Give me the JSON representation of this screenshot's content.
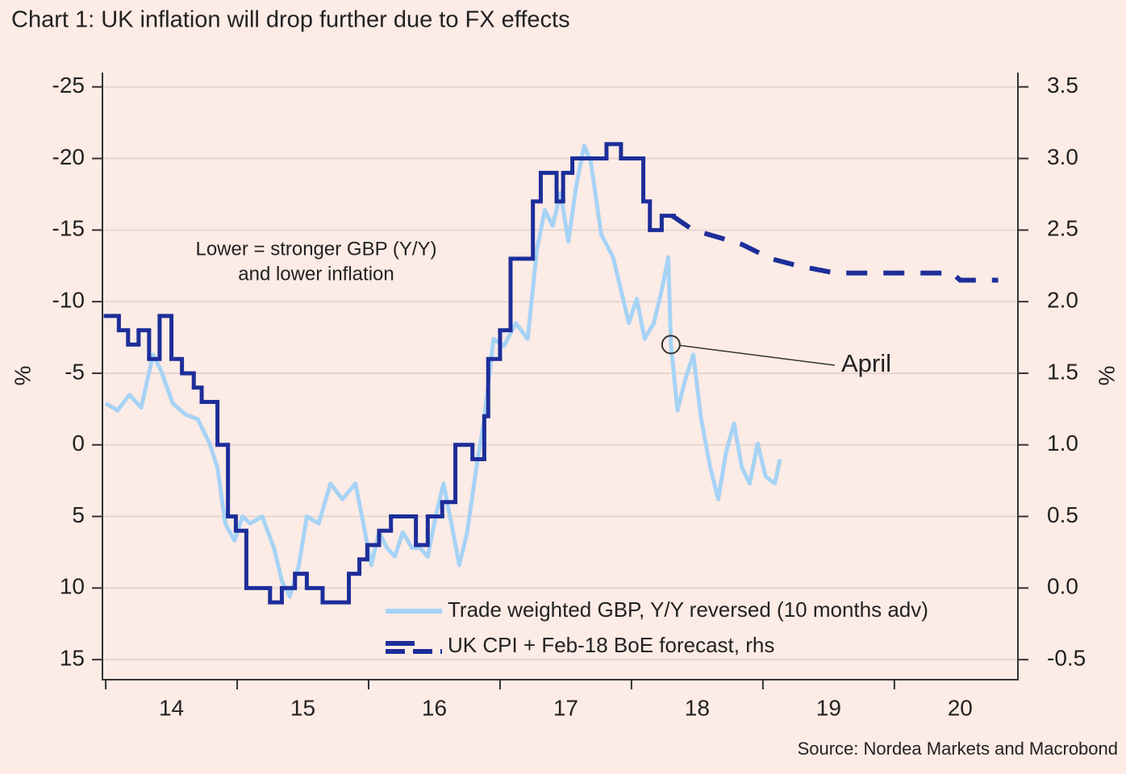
{
  "chart_data": {
    "type": "line",
    "title": "Chart 1: UK inflation will drop further due to FX effects",
    "source": "Source: Nordea Markets and Macrobond",
    "ylabel": "%",
    "y2label": "%",
    "xlim": [
      13.975,
      20.94
    ],
    "xticks": [
      {
        "value": 14.5,
        "label": "14"
      },
      {
        "value": 15.5,
        "label": "15"
      },
      {
        "value": 16.5,
        "label": "16"
      },
      {
        "value": 17.5,
        "label": "17"
      },
      {
        "value": 18.5,
        "label": "18"
      },
      {
        "value": 19.5,
        "label": "19"
      },
      {
        "value": 20.5,
        "label": "20"
      }
    ],
    "xminorticks": [
      14,
      15,
      16,
      17,
      18,
      19,
      20
    ],
    "ylim": [
      -26,
      16.4
    ],
    "y_inverted": true,
    "yticks": [
      -25,
      -20,
      -15,
      -10,
      -5,
      0,
      5,
      10,
      15
    ],
    "y2lim": [
      -0.64,
      3.6
    ],
    "y2ticks": [
      3.5,
      {
        "value": 3,
        "label": "3.0"
      },
      2.5,
      {
        "value": 2,
        "label": "2.0"
      },
      1.5,
      {
        "value": 1,
        "label": "1.0"
      },
      0.5,
      {
        "value": 0,
        "label": "0.0"
      },
      -0.5
    ],
    "grid": true,
    "legend": "lower center",
    "annotations": [
      {
        "text": "Lower = stronger GBP (Y/Y)"
      },
      {
        "text": "and lower inflation"
      },
      {
        "text": "April",
        "x": 18.3,
        "y": -7
      }
    ],
    "series": [
      {
        "name": "Trade weighted GBP, Y/Y reversed (10 months adv)",
        "color": "#a6d3f5",
        "x": [
          14.0,
          14.09,
          14.18,
          14.27,
          14.36,
          14.42,
          14.51,
          14.61,
          14.7,
          14.79,
          14.85,
          14.91,
          14.98,
          15.04,
          15.1,
          15.19,
          15.28,
          15.34,
          15.4,
          15.47,
          15.53,
          15.62,
          15.71,
          15.8,
          15.9,
          15.96,
          16.02,
          16.08,
          16.14,
          16.2,
          16.26,
          16.33,
          16.39,
          16.45,
          16.51,
          16.57,
          16.63,
          16.69,
          16.75,
          16.82,
          16.88,
          16.95,
          17.03,
          17.12,
          17.21,
          17.28,
          17.34,
          17.4,
          17.46,
          17.52,
          17.58,
          17.64,
          17.69,
          17.77,
          17.86,
          17.92,
          17.98,
          18.04,
          18.1,
          18.17,
          18.23,
          18.28,
          18.3,
          18.35,
          18.41,
          18.47,
          18.53,
          18.6,
          18.66,
          18.72,
          18.78,
          18.84,
          18.9,
          18.96,
          19.02,
          19.09,
          19.13
        ],
        "values": [
          -2.9,
          -2.4,
          -3.5,
          -2.6,
          -6.3,
          -5.2,
          -2.9,
          -2.1,
          -1.8,
          -0.1,
          1.6,
          5.5,
          6.7,
          5.0,
          5.5,
          5.0,
          7.2,
          9.5,
          10.6,
          8.4,
          5.0,
          5.5,
          2.7,
          3.8,
          2.7,
          5.5,
          8.4,
          6.1,
          7.2,
          7.8,
          6.1,
          7.2,
          7.2,
          7.8,
          5.0,
          2.7,
          5.5,
          8.4,
          6.1,
          1.6,
          -1.8,
          -7.4,
          -6.9,
          -8.5,
          -7.4,
          -13.6,
          -16.4,
          -15.3,
          -17.6,
          -14.2,
          -18.1,
          -20.9,
          -19.8,
          -14.7,
          -13.1,
          -10.8,
          -8.5,
          -10.2,
          -7.4,
          -8.5,
          -10.8,
          -13.1,
          -7.0,
          -2.4,
          -4.6,
          -6.3,
          -1.8,
          1.6,
          3.8,
          0.5,
          -1.5,
          1.6,
          2.7,
          -0.1,
          2.2,
          2.7,
          1.0
        ]
      },
      {
        "name": "UK CPI + Feb-18 BoE forecast, rhs",
        "color": "#1d2e9a",
        "axis": "y2",
        "step": true,
        "x": [
          14.0,
          14.1,
          14.17,
          14.25,
          14.33,
          14.41,
          14.5,
          14.58,
          14.67,
          14.73,
          14.85,
          14.93,
          14.99,
          15.07,
          15.25,
          15.34,
          15.44,
          15.53,
          15.65,
          15.85,
          15.93,
          15.99,
          16.08,
          16.17,
          16.36,
          16.45,
          16.56,
          16.66,
          16.79,
          16.88,
          16.91,
          17.0,
          17.08,
          17.25,
          17.31,
          17.43,
          17.48,
          17.55,
          17.81,
          17.92,
          18.09,
          18.14,
          18.23,
          18.31
        ],
        "values": [
          1.9,
          1.8,
          1.7,
          1.8,
          1.6,
          1.9,
          1.6,
          1.5,
          1.4,
          1.3,
          1.0,
          0.5,
          0.4,
          0.0,
          -0.1,
          0.0,
          0.1,
          0.0,
          -0.1,
          0.1,
          0.2,
          0.3,
          0.4,
          0.5,
          0.3,
          0.5,
          0.6,
          1.0,
          0.9,
          1.2,
          1.6,
          1.8,
          2.3,
          2.7,
          2.9,
          2.7,
          2.9,
          3.0,
          3.1,
          3.0,
          2.7,
          2.5,
          2.6,
          2.6
        ],
        "forecast_x": [
          18.31,
          18.47,
          18.66,
          18.84,
          19.06,
          19.27,
          19.55,
          19.82,
          20.1,
          20.44,
          20.5,
          20.79
        ],
        "forecast_values": [
          2.6,
          2.5,
          2.45,
          2.4,
          2.3,
          2.25,
          2.2,
          2.2,
          2.2,
          2.2,
          2.15,
          2.15
        ]
      }
    ]
  }
}
